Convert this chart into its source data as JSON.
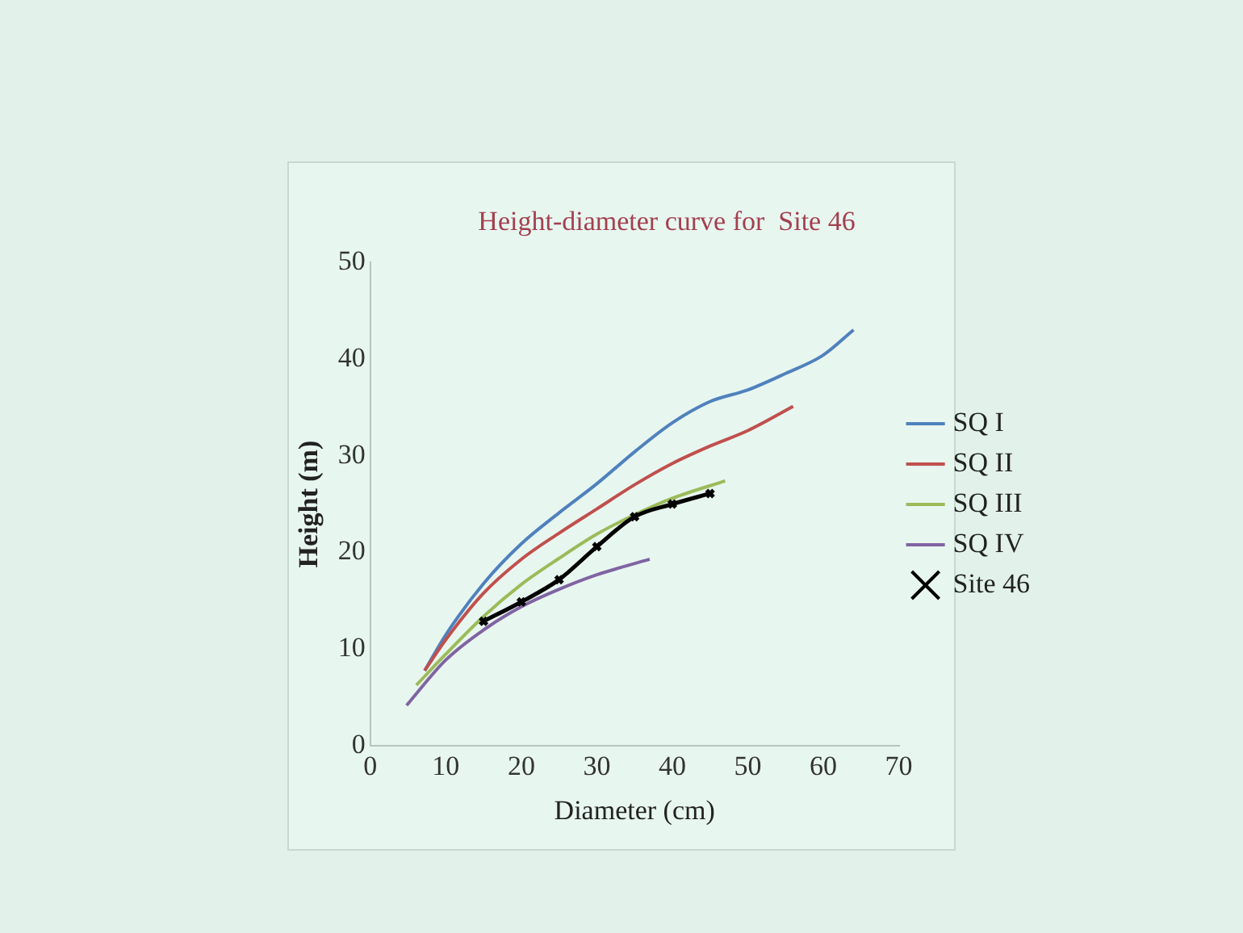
{
  "chart_data": {
    "type": "line",
    "title": "Height-diameter curve for  Site 46",
    "xlabel": "Diameter (cm)",
    "ylabel": "Height (m)",
    "xlim": [
      0,
      70
    ],
    "xticks": [
      0,
      10,
      20,
      30,
      40,
      50,
      60,
      70
    ],
    "ylim": [
      0,
      50
    ],
    "yticks": [
      0,
      10,
      20,
      30,
      40,
      50
    ],
    "grid": false,
    "legend": "right",
    "marker": "none",
    "line_style": "solid",
    "series": [
      {
        "name": "SQ I",
        "color": "#4f81bd",
        "x": [
          7.2,
          10,
          15,
          20,
          25,
          30,
          35,
          40,
          45,
          50,
          55,
          60,
          64
        ],
        "values": [
          7.8,
          11.5,
          16.8,
          20.9,
          24.1,
          27.1,
          30.4,
          33.4,
          35.6,
          36.8,
          38.5,
          40.4,
          43
        ]
      },
      {
        "name": "SQ II",
        "color": "#c0504d",
        "x": [
          7.2,
          10,
          15,
          20,
          25,
          30,
          35,
          40,
          45,
          50,
          56
        ],
        "values": [
          7.8,
          11,
          15.8,
          19.3,
          22,
          24.5,
          27,
          29.2,
          31,
          32.6,
          35.1
        ]
      },
      {
        "name": "SQ III",
        "color": "#9bbb59",
        "x": [
          6.1,
          10,
          15,
          20,
          25,
          30,
          35,
          40,
          47
        ],
        "values": [
          6.3,
          9.5,
          13.4,
          16.7,
          19.4,
          21.9,
          23.9,
          25.6,
          27.4
        ]
      },
      {
        "name": "SQ IV",
        "color": "#8064a2",
        "x": [
          4.8,
          10,
          15,
          20,
          25,
          30,
          37
        ],
        "values": [
          4.2,
          8.9,
          12,
          14.4,
          16.2,
          17.7,
          19.3
        ]
      },
      {
        "name": "Site 46",
        "color": "#000000",
        "marker": "cross",
        "x": [
          15,
          20,
          25,
          30,
          35,
          40,
          45
        ],
        "values": [
          12.9,
          14.9,
          17.2,
          20.6,
          23.7,
          25,
          26.1
        ]
      }
    ]
  }
}
